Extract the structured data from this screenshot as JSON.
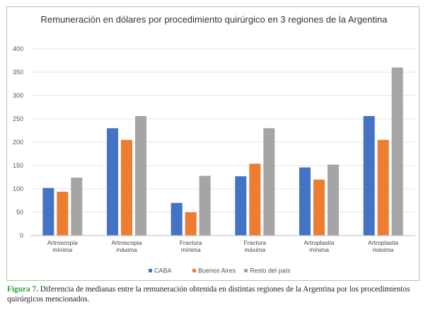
{
  "chart_data": {
    "type": "bar",
    "title": "Remuneración en dólares por procedimiento quirúrgico en 3 regiones de la Argentina",
    "xlabel": "",
    "ylabel": "",
    "ylim": [
      0,
      400
    ],
    "yticks": [
      0,
      50,
      100,
      150,
      200,
      250,
      300,
      350,
      400
    ],
    "grid": true,
    "legend_position": "bottom",
    "categories": [
      [
        "Artroscopia",
        "mínima"
      ],
      [
        "Artroscopia",
        "máxima"
      ],
      [
        "Fractura",
        "mínima"
      ],
      [
        "Fractura",
        "máxima"
      ],
      [
        "Artroplastia",
        "mínima"
      ],
      [
        "Artroplastia",
        "máxima"
      ]
    ],
    "series": [
      {
        "name": "CABA",
        "color": "#4472c4",
        "values": [
          102,
          230,
          70,
          127,
          146,
          256
        ]
      },
      {
        "name": "Buenos Aires",
        "color": "#ed7d31",
        "values": [
          94,
          205,
          50,
          154,
          120,
          205
        ]
      },
      {
        "name": "Resto del país",
        "color": "#a5a5a5",
        "values": [
          124,
          256,
          128,
          230,
          152,
          360
        ]
      }
    ]
  },
  "caption": {
    "label": "Figura 7.",
    "text": " Diferencia de medianas entre la remuneración obtenida en distintas regiones de la Argentina por los procedimientos quirúrgicos mencionados."
  }
}
